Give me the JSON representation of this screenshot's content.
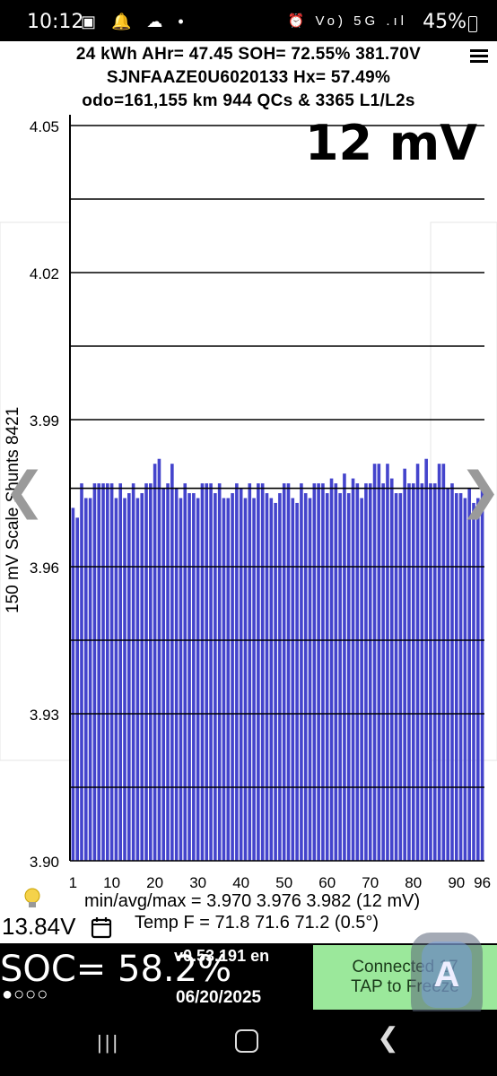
{
  "status_bar": {
    "time": "10:12",
    "left_icons": "▣ 🔔 ☁ •",
    "right_icons": "⏰ Vo) 5G .ıl",
    "battery": "45%"
  },
  "header": {
    "line1": "24 kWh  AHr= 47.45 SOH= 72.55% 381.70V",
    "line2": "SJNFAAZE0U6020133   Hx= 57.49%",
    "line3": "odo=161,155 km 944 QCs & 3365 L1/L2s"
  },
  "scale_label": "12 mV",
  "y_axis_label": "150 mV Scale  Shunts 8421",
  "nav_arrows": {
    "left": "❮",
    "right": "❯"
  },
  "chart_data": {
    "type": "bar",
    "title": "",
    "xlabel": "",
    "ylabel": "150 mV Scale  Shunts 8421",
    "ylim": [
      3.9,
      4.05
    ],
    "y_ticks": [
      "4.05",
      "4.02",
      "3.99",
      "3.96",
      "3.93",
      "3.90"
    ],
    "y_tick_values": [
      4.05,
      4.02,
      3.99,
      3.96,
      3.93,
      3.9
    ],
    "x_ticks": [
      "1",
      "10",
      "20",
      "30",
      "40",
      "50",
      "60",
      "70",
      "80",
      "90",
      "96"
    ],
    "x_tick_values": [
      1,
      10,
      20,
      30,
      40,
      50,
      60,
      70,
      80,
      90,
      96
    ],
    "gridlines": [
      4.05,
      4.035,
      4.02,
      4.005,
      3.99,
      3.976,
      3.96,
      3.945,
      3.93,
      3.915
    ],
    "bar_color": "#4444cc",
    "cells": [
      1,
      2,
      3,
      4,
      5,
      6,
      7,
      8,
      9,
      10,
      11,
      12,
      13,
      14,
      15,
      16,
      17,
      18,
      19,
      20,
      21,
      22,
      23,
      24,
      25,
      26,
      27,
      28,
      29,
      30,
      31,
      32,
      33,
      34,
      35,
      36,
      37,
      38,
      39,
      40,
      41,
      42,
      43,
      44,
      45,
      46,
      47,
      48,
      49,
      50,
      51,
      52,
      53,
      54,
      55,
      56,
      57,
      58,
      59,
      60,
      61,
      62,
      63,
      64,
      65,
      66,
      67,
      68,
      69,
      70,
      71,
      72,
      73,
      74,
      75,
      76,
      77,
      78,
      79,
      80,
      81,
      82,
      83,
      84,
      85,
      86,
      87,
      88,
      89,
      90,
      91,
      92,
      93,
      94,
      95,
      96
    ],
    "values": [
      3.972,
      3.97,
      3.977,
      3.974,
      3.974,
      3.977,
      3.977,
      3.977,
      3.977,
      3.977,
      3.974,
      3.977,
      3.974,
      3.975,
      3.977,
      3.974,
      3.975,
      3.977,
      3.977,
      3.981,
      3.982,
      3.976,
      3.977,
      3.981,
      3.976,
      3.974,
      3.977,
      3.975,
      3.975,
      3.974,
      3.977,
      3.977,
      3.977,
      3.975,
      3.977,
      3.974,
      3.974,
      3.975,
      3.977,
      3.976,
      3.974,
      3.977,
      3.974,
      3.977,
      3.977,
      3.975,
      3.974,
      3.973,
      3.975,
      3.977,
      3.977,
      3.974,
      3.973,
      3.977,
      3.975,
      3.974,
      3.977,
      3.977,
      3.977,
      3.975,
      3.978,
      3.977,
      3.975,
      3.979,
      3.975,
      3.978,
      3.977,
      3.974,
      3.977,
      3.977,
      3.981,
      3.981,
      3.977,
      3.981,
      3.978,
      3.975,
      3.975,
      3.98,
      3.977,
      3.977,
      3.981,
      3.977,
      3.982,
      3.977,
      3.977,
      3.981,
      3.981,
      3.976,
      3.977,
      3.975,
      3.975,
      3.974,
      3.976,
      3.973,
      3.974,
      3.977
    ]
  },
  "stats": {
    "minavgmax": "min/avg/max = 3.970 3.976 3.982  (12 mV)",
    "temp": "Temp F = 71.8  71.6  71.2  (0.5°)"
  },
  "voltage_12v": "13.84V",
  "soc": "SOC= 58.2%",
  "soc_dots": "●○○○",
  "version": "v0.53.191 en",
  "date": "06/20/2025",
  "connect_button": {
    "line1": "Connected 17",
    "line2": "TAP to Freeze"
  },
  "fab_letter": "A",
  "nav": {
    "recents": "|||",
    "back": "❮"
  }
}
